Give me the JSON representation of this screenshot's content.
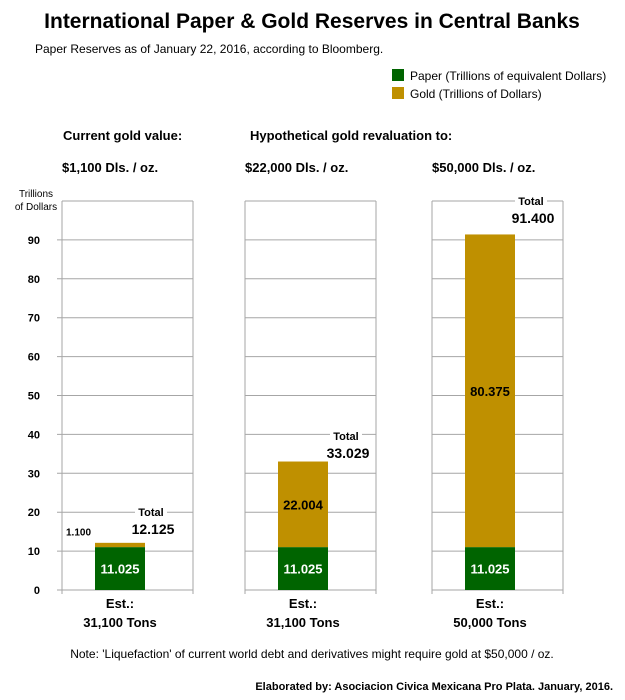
{
  "title": "International Paper & Gold Reserves in Central Banks",
  "subtitle": "Paper Reserves as of January 22, 2016, according to Bloomberg.",
  "note": "Note: 'Liquefaction' of current world debt and derivatives might require gold at $50,000 / oz.",
  "credit": "Elaborated by: Asociacion Civica Mexicana Pro Plata. January, 2016.",
  "colors": {
    "paper": "#006400",
    "gold": "#BF9000",
    "grid": "#A6A6A6"
  },
  "chart_data": {
    "type": "bar",
    "stacked": true,
    "ylabel": "Trillions of Dollars",
    "ylim": [
      0,
      100
    ],
    "yticks": [
      0,
      10,
      20,
      30,
      40,
      50,
      60,
      70,
      80,
      90
    ],
    "grid": true,
    "legend": {
      "placement": "top-right",
      "entries": [
        "Paper (Trillions of equivalent Dollars)",
        "Gold (Trillions of Dollars)"
      ]
    },
    "group_headers": [
      "Current gold value:",
      "Hypothetical gold revaluation to:"
    ],
    "panels": [
      {
        "price": "$1,100 Dls. / oz.",
        "category": [
          "Est.:",
          "31,100 Tons"
        ],
        "paper": 11.025,
        "gold": 1.1,
        "paper_label": "11.025",
        "gold_label": "1.100",
        "total_label": "Total",
        "total": "12.125"
      },
      {
        "price": "$22,000 Dls. / oz.",
        "category": [
          "Est.:",
          "31,100 Tons"
        ],
        "paper": 11.025,
        "gold": 22.004,
        "paper_label": "11.025",
        "gold_label": "22.004",
        "total_label": "Total",
        "total": "33.029"
      },
      {
        "price": "$50,000 Dls. / oz.",
        "category": [
          "Est.:",
          "50,000 Tons"
        ],
        "paper": 11.025,
        "gold": 80.375,
        "paper_label": "11.025",
        "gold_label": "80.375",
        "total_label": "Total",
        "total": "91.400"
      }
    ]
  }
}
